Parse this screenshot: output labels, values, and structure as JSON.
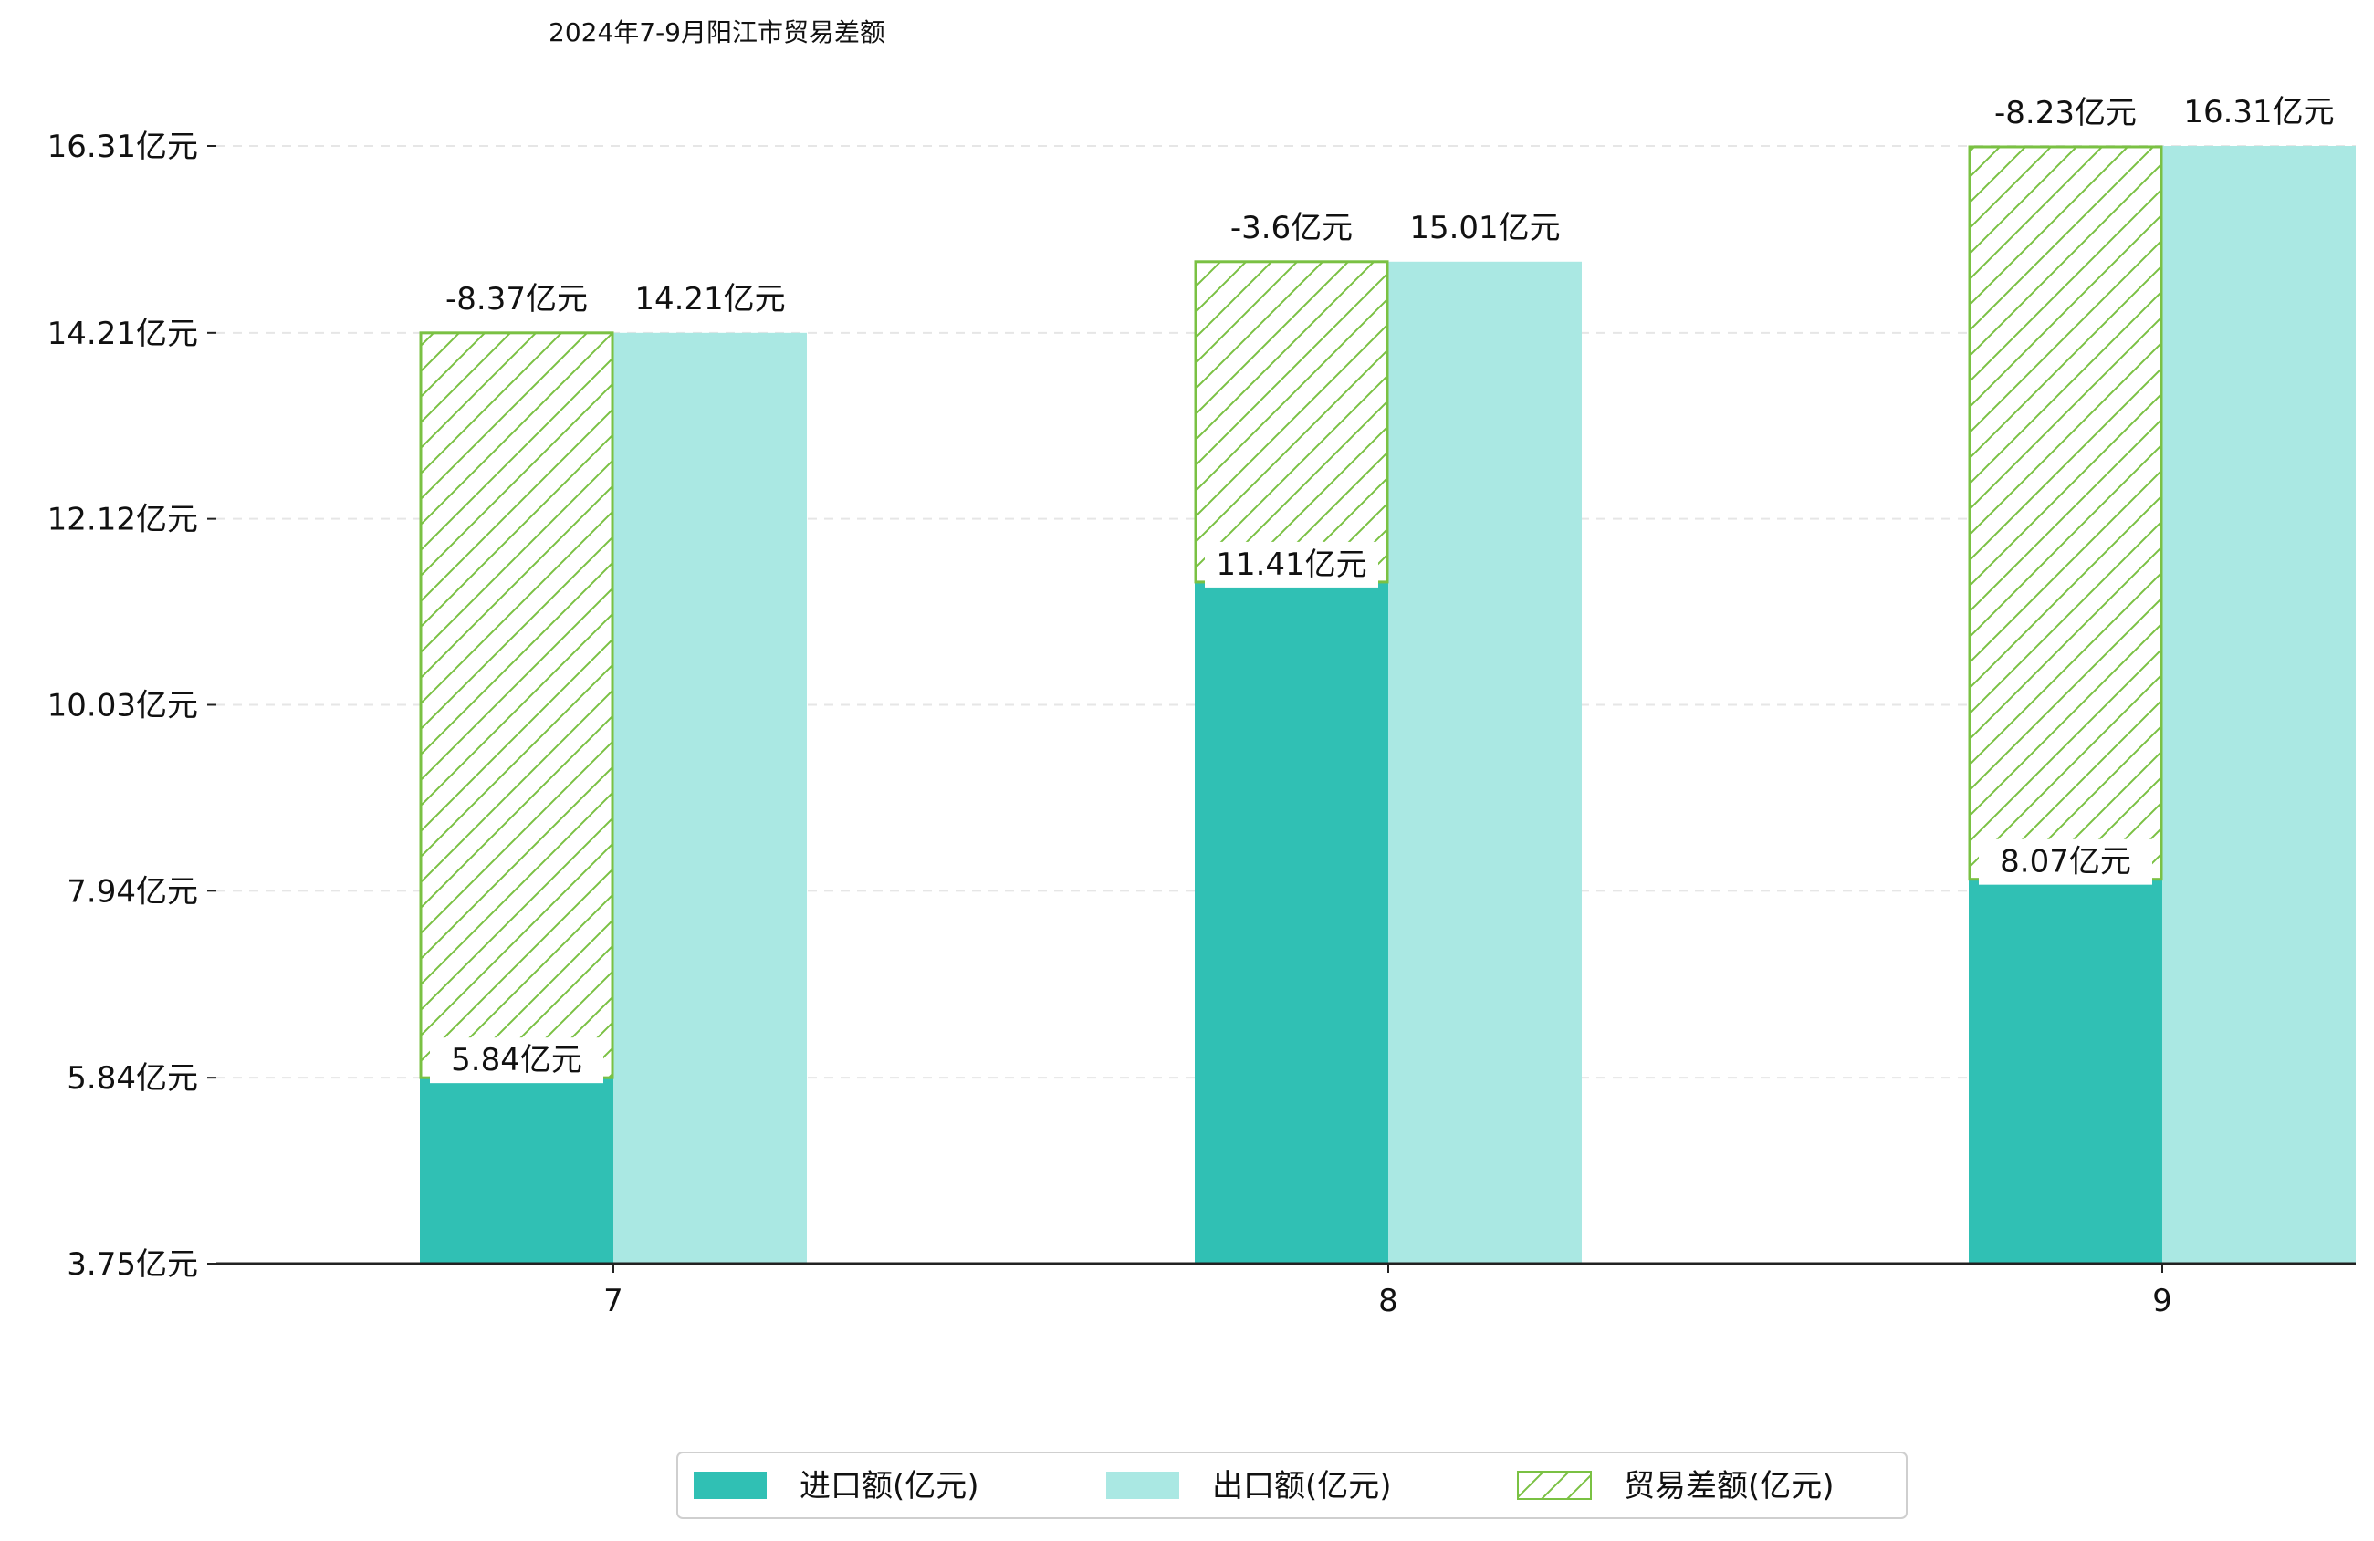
{
  "chart_data": {
    "type": "bar",
    "title": "2024年7-9月阳江市贸易差额",
    "categories": [
      "7",
      "8",
      "9"
    ],
    "series": [
      {
        "name": "进口额(亿元)",
        "values": [
          5.84,
          11.41,
          8.07
        ],
        "color": "#30c0b4"
      },
      {
        "name": "出口额(亿元)",
        "values": [
          14.21,
          15.01,
          16.31
        ],
        "color": "#aae8e3"
      },
      {
        "name": "贸易差额(亿元)",
        "values": [
          -8.37,
          -3.6,
          -8.23
        ],
        "color": "#7ac143"
      }
    ],
    "value_labels": {
      "import": [
        "5.84亿元",
        "11.41亿元",
        "8.07亿元"
      ],
      "export": [
        "14.21亿元",
        "15.01亿元",
        "16.31亿元"
      ],
      "balance": [
        "-8.37亿元",
        "-3.6亿元",
        "-8.23亿元"
      ]
    },
    "yticks": [
      3.75,
      5.84,
      7.94,
      10.03,
      12.12,
      14.21,
      16.31
    ],
    "ytick_labels": [
      "3.75亿元",
      "5.84亿元",
      "7.94亿元",
      "10.03亿元",
      "12.12亿元",
      "14.21亿元",
      "16.31亿元"
    ],
    "ylim": [
      3.75,
      16.31
    ],
    "grid": true,
    "legend_position": "bottom-center",
    "xlabel": "",
    "ylabel": ""
  }
}
